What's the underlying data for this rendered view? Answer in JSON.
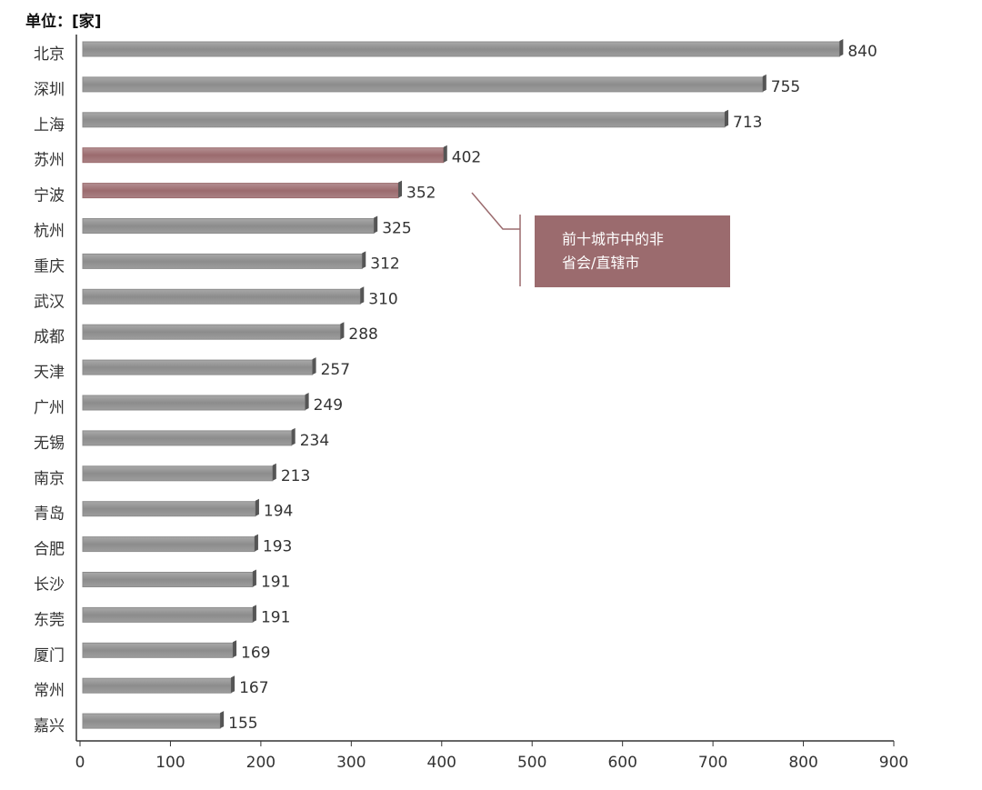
{
  "chart_data": {
    "type": "bar",
    "orientation": "horizontal",
    "unit_label": "单位：[家]",
    "categories": [
      "北京",
      "深圳",
      "上海",
      "苏州",
      "宁波",
      "杭州",
      "重庆",
      "武汉",
      "成都",
      "天津",
      "广州",
      "无锡",
      "南京",
      "青岛",
      "合肥",
      "长沙",
      "东莞",
      "厦门",
      "常州",
      "嘉兴"
    ],
    "values": [
      840,
      755,
      713,
      402,
      352,
      325,
      312,
      310,
      288,
      257,
      249,
      234,
      213,
      194,
      193,
      191,
      191,
      169,
      167,
      155
    ],
    "colors": [
      "#8c8c8c",
      "#8c8c8c",
      "#8c8c8c",
      "#9b6b6e",
      "#9b6b6e",
      "#8c8c8c",
      "#8c8c8c",
      "#8c8c8c",
      "#8c8c8c",
      "#8c8c8c",
      "#8c8c8c",
      "#8c8c8c",
      "#8c8c8c",
      "#8c8c8c",
      "#8c8c8c",
      "#8c8c8c",
      "#8c8c8c",
      "#8c8c8c",
      "#8c8c8c",
      "#8c8c8c"
    ],
    "xlim": [
      0,
      900
    ],
    "xticks": [
      0,
      100,
      200,
      300,
      400,
      500,
      600,
      700,
      800,
      900
    ],
    "annotation": {
      "lines": [
        "前十城市中的非",
        "省会/直辖市"
      ],
      "color": "#9b6b6e"
    }
  }
}
